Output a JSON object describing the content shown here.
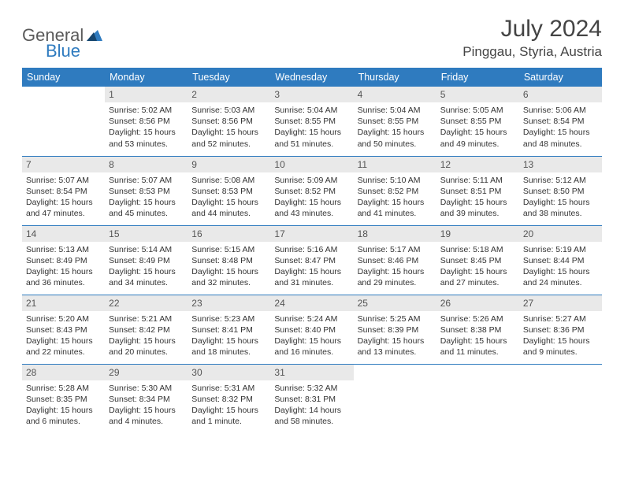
{
  "logo": {
    "general": "General",
    "blue": "Blue"
  },
  "title": "July 2024",
  "location": "Pinggau, Styria, Austria",
  "header_bg": "#2f7bbf",
  "daynum_bg": "#e9e9e9",
  "weekdays": [
    "Sunday",
    "Monday",
    "Tuesday",
    "Wednesday",
    "Thursday",
    "Friday",
    "Saturday"
  ],
  "weeks": [
    [
      {
        "n": "",
        "sr": "",
        "ss": "",
        "dl": ""
      },
      {
        "n": "1",
        "sr": "Sunrise: 5:02 AM",
        "ss": "Sunset: 8:56 PM",
        "dl": "Daylight: 15 hours and 53 minutes."
      },
      {
        "n": "2",
        "sr": "Sunrise: 5:03 AM",
        "ss": "Sunset: 8:56 PM",
        "dl": "Daylight: 15 hours and 52 minutes."
      },
      {
        "n": "3",
        "sr": "Sunrise: 5:04 AM",
        "ss": "Sunset: 8:55 PM",
        "dl": "Daylight: 15 hours and 51 minutes."
      },
      {
        "n": "4",
        "sr": "Sunrise: 5:04 AM",
        "ss": "Sunset: 8:55 PM",
        "dl": "Daylight: 15 hours and 50 minutes."
      },
      {
        "n": "5",
        "sr": "Sunrise: 5:05 AM",
        "ss": "Sunset: 8:55 PM",
        "dl": "Daylight: 15 hours and 49 minutes."
      },
      {
        "n": "6",
        "sr": "Sunrise: 5:06 AM",
        "ss": "Sunset: 8:54 PM",
        "dl": "Daylight: 15 hours and 48 minutes."
      }
    ],
    [
      {
        "n": "7",
        "sr": "Sunrise: 5:07 AM",
        "ss": "Sunset: 8:54 PM",
        "dl": "Daylight: 15 hours and 47 minutes."
      },
      {
        "n": "8",
        "sr": "Sunrise: 5:07 AM",
        "ss": "Sunset: 8:53 PM",
        "dl": "Daylight: 15 hours and 45 minutes."
      },
      {
        "n": "9",
        "sr": "Sunrise: 5:08 AM",
        "ss": "Sunset: 8:53 PM",
        "dl": "Daylight: 15 hours and 44 minutes."
      },
      {
        "n": "10",
        "sr": "Sunrise: 5:09 AM",
        "ss": "Sunset: 8:52 PM",
        "dl": "Daylight: 15 hours and 43 minutes."
      },
      {
        "n": "11",
        "sr": "Sunrise: 5:10 AM",
        "ss": "Sunset: 8:52 PM",
        "dl": "Daylight: 15 hours and 41 minutes."
      },
      {
        "n": "12",
        "sr": "Sunrise: 5:11 AM",
        "ss": "Sunset: 8:51 PM",
        "dl": "Daylight: 15 hours and 39 minutes."
      },
      {
        "n": "13",
        "sr": "Sunrise: 5:12 AM",
        "ss": "Sunset: 8:50 PM",
        "dl": "Daylight: 15 hours and 38 minutes."
      }
    ],
    [
      {
        "n": "14",
        "sr": "Sunrise: 5:13 AM",
        "ss": "Sunset: 8:49 PM",
        "dl": "Daylight: 15 hours and 36 minutes."
      },
      {
        "n": "15",
        "sr": "Sunrise: 5:14 AM",
        "ss": "Sunset: 8:49 PM",
        "dl": "Daylight: 15 hours and 34 minutes."
      },
      {
        "n": "16",
        "sr": "Sunrise: 5:15 AM",
        "ss": "Sunset: 8:48 PM",
        "dl": "Daylight: 15 hours and 32 minutes."
      },
      {
        "n": "17",
        "sr": "Sunrise: 5:16 AM",
        "ss": "Sunset: 8:47 PM",
        "dl": "Daylight: 15 hours and 31 minutes."
      },
      {
        "n": "18",
        "sr": "Sunrise: 5:17 AM",
        "ss": "Sunset: 8:46 PM",
        "dl": "Daylight: 15 hours and 29 minutes."
      },
      {
        "n": "19",
        "sr": "Sunrise: 5:18 AM",
        "ss": "Sunset: 8:45 PM",
        "dl": "Daylight: 15 hours and 27 minutes."
      },
      {
        "n": "20",
        "sr": "Sunrise: 5:19 AM",
        "ss": "Sunset: 8:44 PM",
        "dl": "Daylight: 15 hours and 24 minutes."
      }
    ],
    [
      {
        "n": "21",
        "sr": "Sunrise: 5:20 AM",
        "ss": "Sunset: 8:43 PM",
        "dl": "Daylight: 15 hours and 22 minutes."
      },
      {
        "n": "22",
        "sr": "Sunrise: 5:21 AM",
        "ss": "Sunset: 8:42 PM",
        "dl": "Daylight: 15 hours and 20 minutes."
      },
      {
        "n": "23",
        "sr": "Sunrise: 5:23 AM",
        "ss": "Sunset: 8:41 PM",
        "dl": "Daylight: 15 hours and 18 minutes."
      },
      {
        "n": "24",
        "sr": "Sunrise: 5:24 AM",
        "ss": "Sunset: 8:40 PM",
        "dl": "Daylight: 15 hours and 16 minutes."
      },
      {
        "n": "25",
        "sr": "Sunrise: 5:25 AM",
        "ss": "Sunset: 8:39 PM",
        "dl": "Daylight: 15 hours and 13 minutes."
      },
      {
        "n": "26",
        "sr": "Sunrise: 5:26 AM",
        "ss": "Sunset: 8:38 PM",
        "dl": "Daylight: 15 hours and 11 minutes."
      },
      {
        "n": "27",
        "sr": "Sunrise: 5:27 AM",
        "ss": "Sunset: 8:36 PM",
        "dl": "Daylight: 15 hours and 9 minutes."
      }
    ],
    [
      {
        "n": "28",
        "sr": "Sunrise: 5:28 AM",
        "ss": "Sunset: 8:35 PM",
        "dl": "Daylight: 15 hours and 6 minutes."
      },
      {
        "n": "29",
        "sr": "Sunrise: 5:30 AM",
        "ss": "Sunset: 8:34 PM",
        "dl": "Daylight: 15 hours and 4 minutes."
      },
      {
        "n": "30",
        "sr": "Sunrise: 5:31 AM",
        "ss": "Sunset: 8:32 PM",
        "dl": "Daylight: 15 hours and 1 minute."
      },
      {
        "n": "31",
        "sr": "Sunrise: 5:32 AM",
        "ss": "Sunset: 8:31 PM",
        "dl": "Daylight: 14 hours and 58 minutes."
      },
      {
        "n": "",
        "sr": "",
        "ss": "",
        "dl": ""
      },
      {
        "n": "",
        "sr": "",
        "ss": "",
        "dl": ""
      },
      {
        "n": "",
        "sr": "",
        "ss": "",
        "dl": ""
      }
    ]
  ]
}
